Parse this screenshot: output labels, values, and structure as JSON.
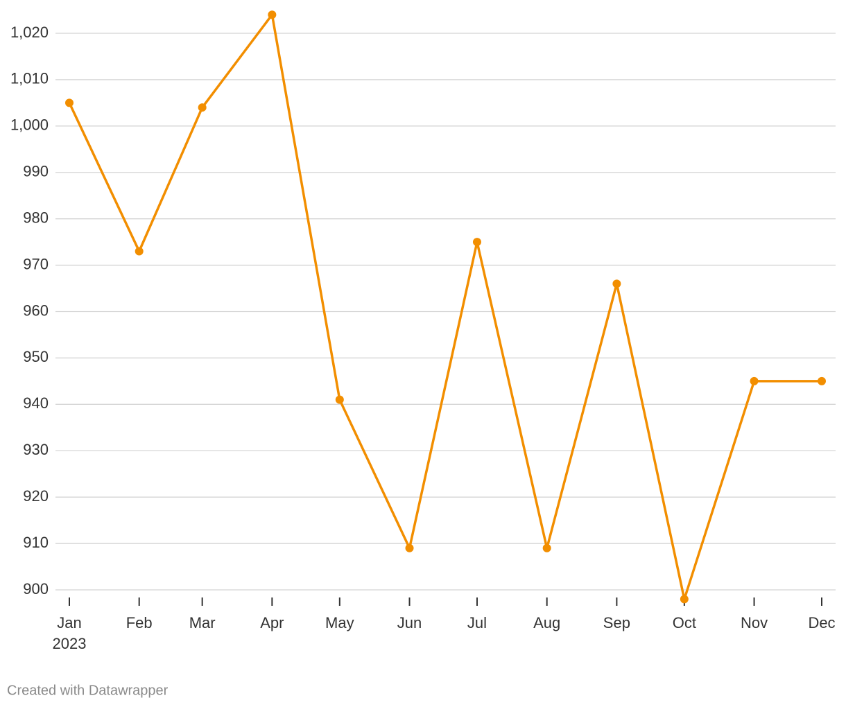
{
  "chart_data": {
    "type": "line",
    "x": [
      "2023-01",
      "2023-02",
      "2023-03",
      "2023-04",
      "2023-05",
      "2023-06",
      "2023-07",
      "2023-08",
      "2023-09",
      "2023-10",
      "2023-11",
      "2023-12"
    ],
    "values": [
      1005,
      973,
      1004,
      1024,
      941,
      909,
      975,
      909,
      966,
      898,
      945,
      945
    ],
    "color": "#f28e00",
    "xlim": [
      "2023-01",
      "2023-12"
    ],
    "xticks": [
      {
        "value": "2023-01",
        "label": "Jan",
        "sublabel": "2023"
      },
      {
        "value": "2023-02",
        "label": "Feb"
      },
      {
        "value": "2023-03",
        "label": "Mar"
      },
      {
        "value": "2023-04",
        "label": "Apr"
      },
      {
        "value": "2023-05",
        "label": "May"
      },
      {
        "value": "2023-06",
        "label": "Jun"
      },
      {
        "value": "2023-07",
        "label": "Jul"
      },
      {
        "value": "2023-08",
        "label": "Aug"
      },
      {
        "value": "2023-09",
        "label": "Sep"
      },
      {
        "value": "2023-10",
        "label": "Oct"
      },
      {
        "value": "2023-11",
        "label": "Nov"
      },
      {
        "value": "2023-12",
        "label": "Dec"
      }
    ],
    "ylim": [
      900,
      1020
    ],
    "yticks": [
      900,
      910,
      920,
      930,
      940,
      950,
      960,
      970,
      980,
      990,
      {
        "value": 1000,
        "label": "1,000"
      },
      {
        "value": 1010,
        "label": "1,010"
      },
      {
        "value": 1020,
        "label": "1,020"
      }
    ],
    "grid": true,
    "footer": "Created with Datawrapper"
  }
}
